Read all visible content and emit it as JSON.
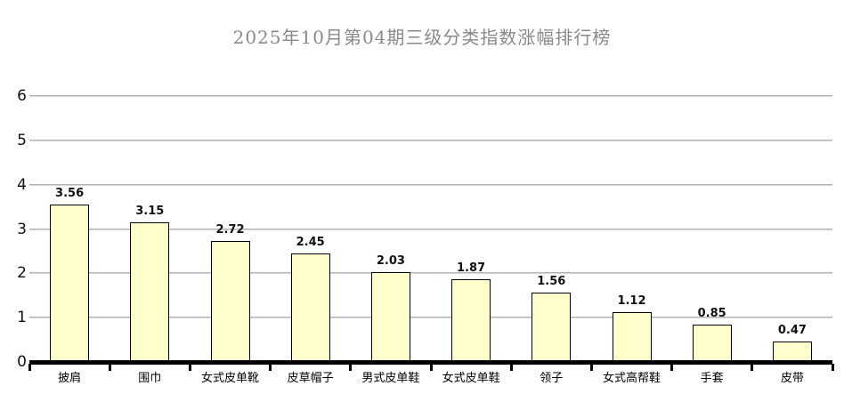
{
  "title": "2025年10月第04期三级分类指数涨幅排行榜",
  "colors": {
    "bar_fill": "#FFFFCC",
    "bar_border": "#000000",
    "gridline": "#A0A0A0",
    "axis": "#000000",
    "title_text": "#8A8A8A",
    "label_text": "#111111",
    "background": "#FFFFFF"
  },
  "chart_data": {
    "type": "bar",
    "title": "2025年10月第04期三级分类指数涨幅排行榜",
    "categories": [
      "披肩",
      "围巾",
      "女式皮单靴",
      "皮草帽子",
      "男式皮单鞋",
      "女式皮单鞋",
      "领子",
      "女式高帮鞋",
      "手套",
      "皮带"
    ],
    "values": [
      3.56,
      3.15,
      2.72,
      2.45,
      2.03,
      1.87,
      1.56,
      1.12,
      0.85,
      0.47
    ],
    "value_labels": [
      "3.56",
      "3.15",
      "2.72",
      "2.45",
      "2.03",
      "1.87",
      "1.56",
      "1.12",
      "0.85",
      "0.47"
    ],
    "xlabel": "",
    "ylabel": "",
    "ylim": [
      0,
      6
    ],
    "yticks": [
      0,
      1,
      2,
      3,
      4,
      5,
      6
    ],
    "grid": true,
    "legend": false,
    "data_labels": true,
    "bar_orientation": "vertical"
  }
}
